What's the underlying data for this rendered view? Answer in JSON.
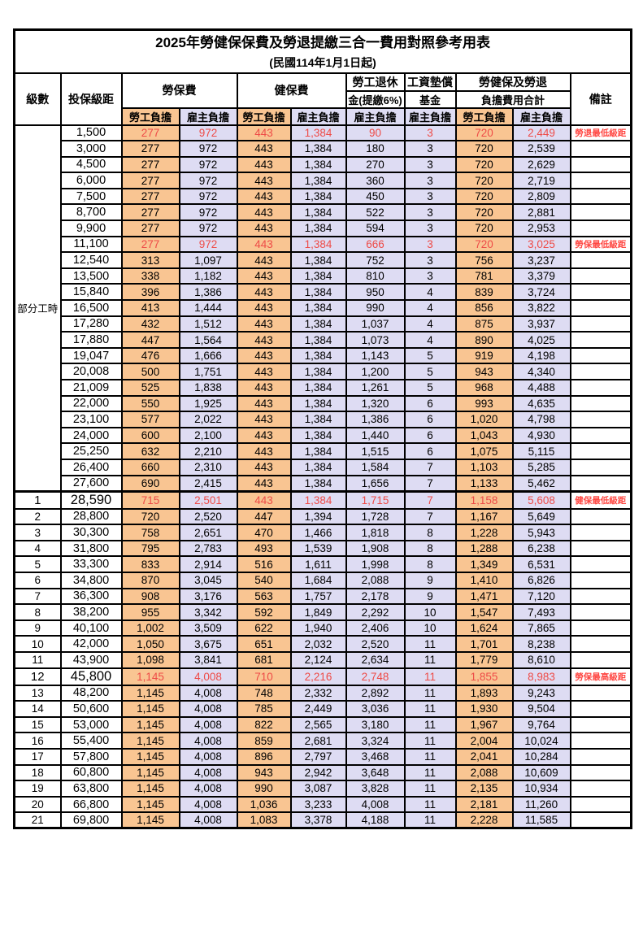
{
  "page": {
    "title": "2025年勞健保保費及勞退提繳三合一費用對照參考用表",
    "subtitle": "(民國114年1月1日起)"
  },
  "table": {
    "headers": {
      "level": "級數",
      "bracket": "投保級距",
      "labor_insurance": "勞保費",
      "health_insurance": "健保費",
      "pension_line1": "勞工退休",
      "pension_line2": "金(提繳6%)",
      "fund_line1": "工資墊償",
      "fund_line2": "基金",
      "total_line1": "勞健保及勞退",
      "total_line2": "負擔費用合計",
      "note": "備註",
      "employee": "勞工負擔",
      "employer": "雇主負擔"
    },
    "part_time_label": "部分工時",
    "part_time_rowspan": 23,
    "colors": {
      "employee_bg": "#F9C592",
      "employer_bg": "#DEDCF3",
      "highlight_red": "#EE4B47",
      "note_red": "#FF4742"
    },
    "columns": [
      "level",
      "bracket",
      "labor_employee",
      "labor_employer",
      "health_employee",
      "health_employer",
      "pension_employer",
      "fund_employer",
      "total_employee",
      "total_employer",
      "note"
    ],
    "red_rows": [
      0,
      7,
      23,
      34
    ],
    "big_rows": [
      23,
      34
    ],
    "thick_top_rows": [
      23
    ],
    "rows": [
      [
        "",
        "1,500",
        "277",
        "972",
        "443",
        "1,384",
        "90",
        "3",
        "720",
        "2,449",
        "勞退最低級距"
      ],
      [
        "",
        "3,000",
        "277",
        "972",
        "443",
        "1,384",
        "180",
        "3",
        "720",
        "2,539",
        ""
      ],
      [
        "",
        "4,500",
        "277",
        "972",
        "443",
        "1,384",
        "270",
        "3",
        "720",
        "2,629",
        ""
      ],
      [
        "",
        "6,000",
        "277",
        "972",
        "443",
        "1,384",
        "360",
        "3",
        "720",
        "2,719",
        ""
      ],
      [
        "",
        "7,500",
        "277",
        "972",
        "443",
        "1,384",
        "450",
        "3",
        "720",
        "2,809",
        ""
      ],
      [
        "",
        "8,700",
        "277",
        "972",
        "443",
        "1,384",
        "522",
        "3",
        "720",
        "2,881",
        ""
      ],
      [
        "",
        "9,900",
        "277",
        "972",
        "443",
        "1,384",
        "594",
        "3",
        "720",
        "2,953",
        ""
      ],
      [
        "",
        "11,100",
        "277",
        "972",
        "443",
        "1,384",
        "666",
        "3",
        "720",
        "3,025",
        "勞保最低級距"
      ],
      [
        "",
        "12,540",
        "313",
        "1,097",
        "443",
        "1,384",
        "752",
        "3",
        "756",
        "3,237",
        ""
      ],
      [
        "",
        "13,500",
        "338",
        "1,182",
        "443",
        "1,384",
        "810",
        "3",
        "781",
        "3,379",
        ""
      ],
      [
        "",
        "15,840",
        "396",
        "1,386",
        "443",
        "1,384",
        "950",
        "4",
        "839",
        "3,724",
        ""
      ],
      [
        "",
        "16,500",
        "413",
        "1,444",
        "443",
        "1,384",
        "990",
        "4",
        "856",
        "3,822",
        ""
      ],
      [
        "",
        "17,280",
        "432",
        "1,512",
        "443",
        "1,384",
        "1,037",
        "4",
        "875",
        "3,937",
        ""
      ],
      [
        "",
        "17,880",
        "447",
        "1,564",
        "443",
        "1,384",
        "1,073",
        "4",
        "890",
        "4,025",
        ""
      ],
      [
        "",
        "19,047",
        "476",
        "1,666",
        "443",
        "1,384",
        "1,143",
        "5",
        "919",
        "4,198",
        ""
      ],
      [
        "",
        "20,008",
        "500",
        "1,751",
        "443",
        "1,384",
        "1,200",
        "5",
        "943",
        "4,340",
        ""
      ],
      [
        "",
        "21,009",
        "525",
        "1,838",
        "443",
        "1,384",
        "1,261",
        "5",
        "968",
        "4,488",
        ""
      ],
      [
        "",
        "22,000",
        "550",
        "1,925",
        "443",
        "1,384",
        "1,320",
        "6",
        "993",
        "4,635",
        ""
      ],
      [
        "",
        "23,100",
        "577",
        "2,022",
        "443",
        "1,384",
        "1,386",
        "6",
        "1,020",
        "4,798",
        ""
      ],
      [
        "",
        "24,000",
        "600",
        "2,100",
        "443",
        "1,384",
        "1,440",
        "6",
        "1,043",
        "4,930",
        ""
      ],
      [
        "",
        "25,250",
        "632",
        "2,210",
        "443",
        "1,384",
        "1,515",
        "6",
        "1,075",
        "5,115",
        ""
      ],
      [
        "",
        "26,400",
        "660",
        "2,310",
        "443",
        "1,384",
        "1,584",
        "7",
        "1,103",
        "5,285",
        ""
      ],
      [
        "",
        "27,600",
        "690",
        "2,415",
        "443",
        "1,384",
        "1,656",
        "7",
        "1,133",
        "5,462",
        ""
      ],
      [
        "1",
        "28,590",
        "715",
        "2,501",
        "443",
        "1,384",
        "1,715",
        "7",
        "1,158",
        "5,608",
        "健保最低級距"
      ],
      [
        "2",
        "28,800",
        "720",
        "2,520",
        "447",
        "1,394",
        "1,728",
        "7",
        "1,167",
        "5,649",
        ""
      ],
      [
        "3",
        "30,300",
        "758",
        "2,651",
        "470",
        "1,466",
        "1,818",
        "8",
        "1,228",
        "5,943",
        ""
      ],
      [
        "4",
        "31,800",
        "795",
        "2,783",
        "493",
        "1,539",
        "1,908",
        "8",
        "1,288",
        "6,238",
        ""
      ],
      [
        "5",
        "33,300",
        "833",
        "2,914",
        "516",
        "1,611",
        "1,998",
        "8",
        "1,349",
        "6,531",
        ""
      ],
      [
        "6",
        "34,800",
        "870",
        "3,045",
        "540",
        "1,684",
        "2,088",
        "9",
        "1,410",
        "6,826",
        ""
      ],
      [
        "7",
        "36,300",
        "908",
        "3,176",
        "563",
        "1,757",
        "2,178",
        "9",
        "1,471",
        "7,120",
        ""
      ],
      [
        "8",
        "38,200",
        "955",
        "3,342",
        "592",
        "1,849",
        "2,292",
        "10",
        "1,547",
        "7,493",
        ""
      ],
      [
        "9",
        "40,100",
        "1,002",
        "3,509",
        "622",
        "1,940",
        "2,406",
        "10",
        "1,624",
        "7,865",
        ""
      ],
      [
        "10",
        "42,000",
        "1,050",
        "3,675",
        "651",
        "2,032",
        "2,520",
        "11",
        "1,701",
        "8,238",
        ""
      ],
      [
        "11",
        "43,900",
        "1,098",
        "3,841",
        "681",
        "2,124",
        "2,634",
        "11",
        "1,779",
        "8,610",
        ""
      ],
      [
        "12",
        "45,800",
        "1,145",
        "4,008",
        "710",
        "2,216",
        "2,748",
        "11",
        "1,855",
        "8,983",
        "勞保最高級距"
      ],
      [
        "13",
        "48,200",
        "1,145",
        "4,008",
        "748",
        "2,332",
        "2,892",
        "11",
        "1,893",
        "9,243",
        ""
      ],
      [
        "14",
        "50,600",
        "1,145",
        "4,008",
        "785",
        "2,449",
        "3,036",
        "11",
        "1,930",
        "9,504",
        ""
      ],
      [
        "15",
        "53,000",
        "1,145",
        "4,008",
        "822",
        "2,565",
        "3,180",
        "11",
        "1,967",
        "9,764",
        ""
      ],
      [
        "16",
        "55,400",
        "1,145",
        "4,008",
        "859",
        "2,681",
        "3,324",
        "11",
        "2,004",
        "10,024",
        ""
      ],
      [
        "17",
        "57,800",
        "1,145",
        "4,008",
        "896",
        "2,797",
        "3,468",
        "11",
        "2,041",
        "10,284",
        ""
      ],
      [
        "18",
        "60,800",
        "1,145",
        "4,008",
        "943",
        "2,942",
        "3,648",
        "11",
        "2,088",
        "10,609",
        ""
      ],
      [
        "19",
        "63,800",
        "1,145",
        "4,008",
        "990",
        "3,087",
        "3,828",
        "11",
        "2,135",
        "10,934",
        ""
      ],
      [
        "20",
        "66,800",
        "1,145",
        "4,008",
        "1,036",
        "3,233",
        "4,008",
        "11",
        "2,181",
        "11,260",
        ""
      ],
      [
        "21",
        "69,800",
        "1,145",
        "4,008",
        "1,083",
        "3,378",
        "4,188",
        "11",
        "2,228",
        "11,585",
        ""
      ]
    ]
  }
}
